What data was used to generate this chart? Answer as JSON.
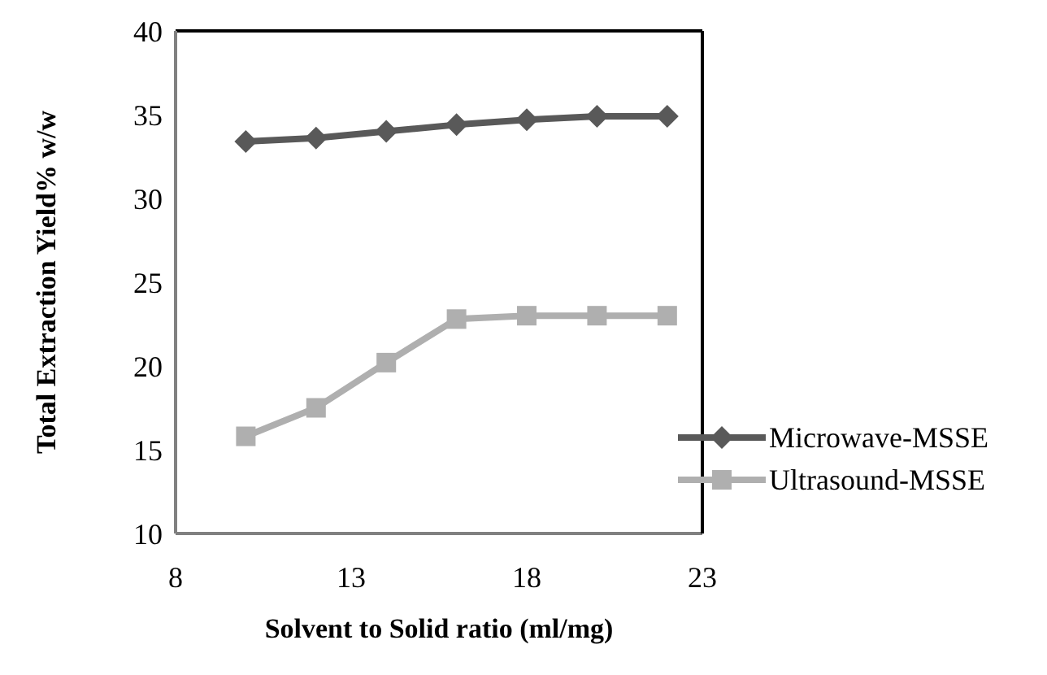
{
  "chart_data": {
    "type": "line",
    "xlabel": "Solvent to Solid ratio (ml/mg)",
    "ylabel": "Total Extraction Yield% w/w",
    "x": [
      10,
      12,
      14,
      16,
      18,
      20,
      22
    ],
    "series": [
      {
        "name": "Microwave-MSSE",
        "color": "#595959",
        "marker": "diamond",
        "values": [
          33.4,
          33.6,
          34.0,
          34.4,
          34.7,
          34.9,
          34.9
        ]
      },
      {
        "name": "Ultrasound-MSSE",
        "color": "#afafaf",
        "marker": "square",
        "values": [
          15.8,
          17.5,
          20.2,
          22.8,
          23.0,
          23.0,
          23.0
        ]
      }
    ],
    "xlim": [
      8,
      23
    ],
    "xticks": [
      8,
      13,
      18,
      23
    ],
    "ylim": [
      10,
      40
    ],
    "yticks": [
      10,
      15,
      20,
      25,
      30,
      35,
      40
    ],
    "grid": false,
    "legend": "bottom right"
  }
}
